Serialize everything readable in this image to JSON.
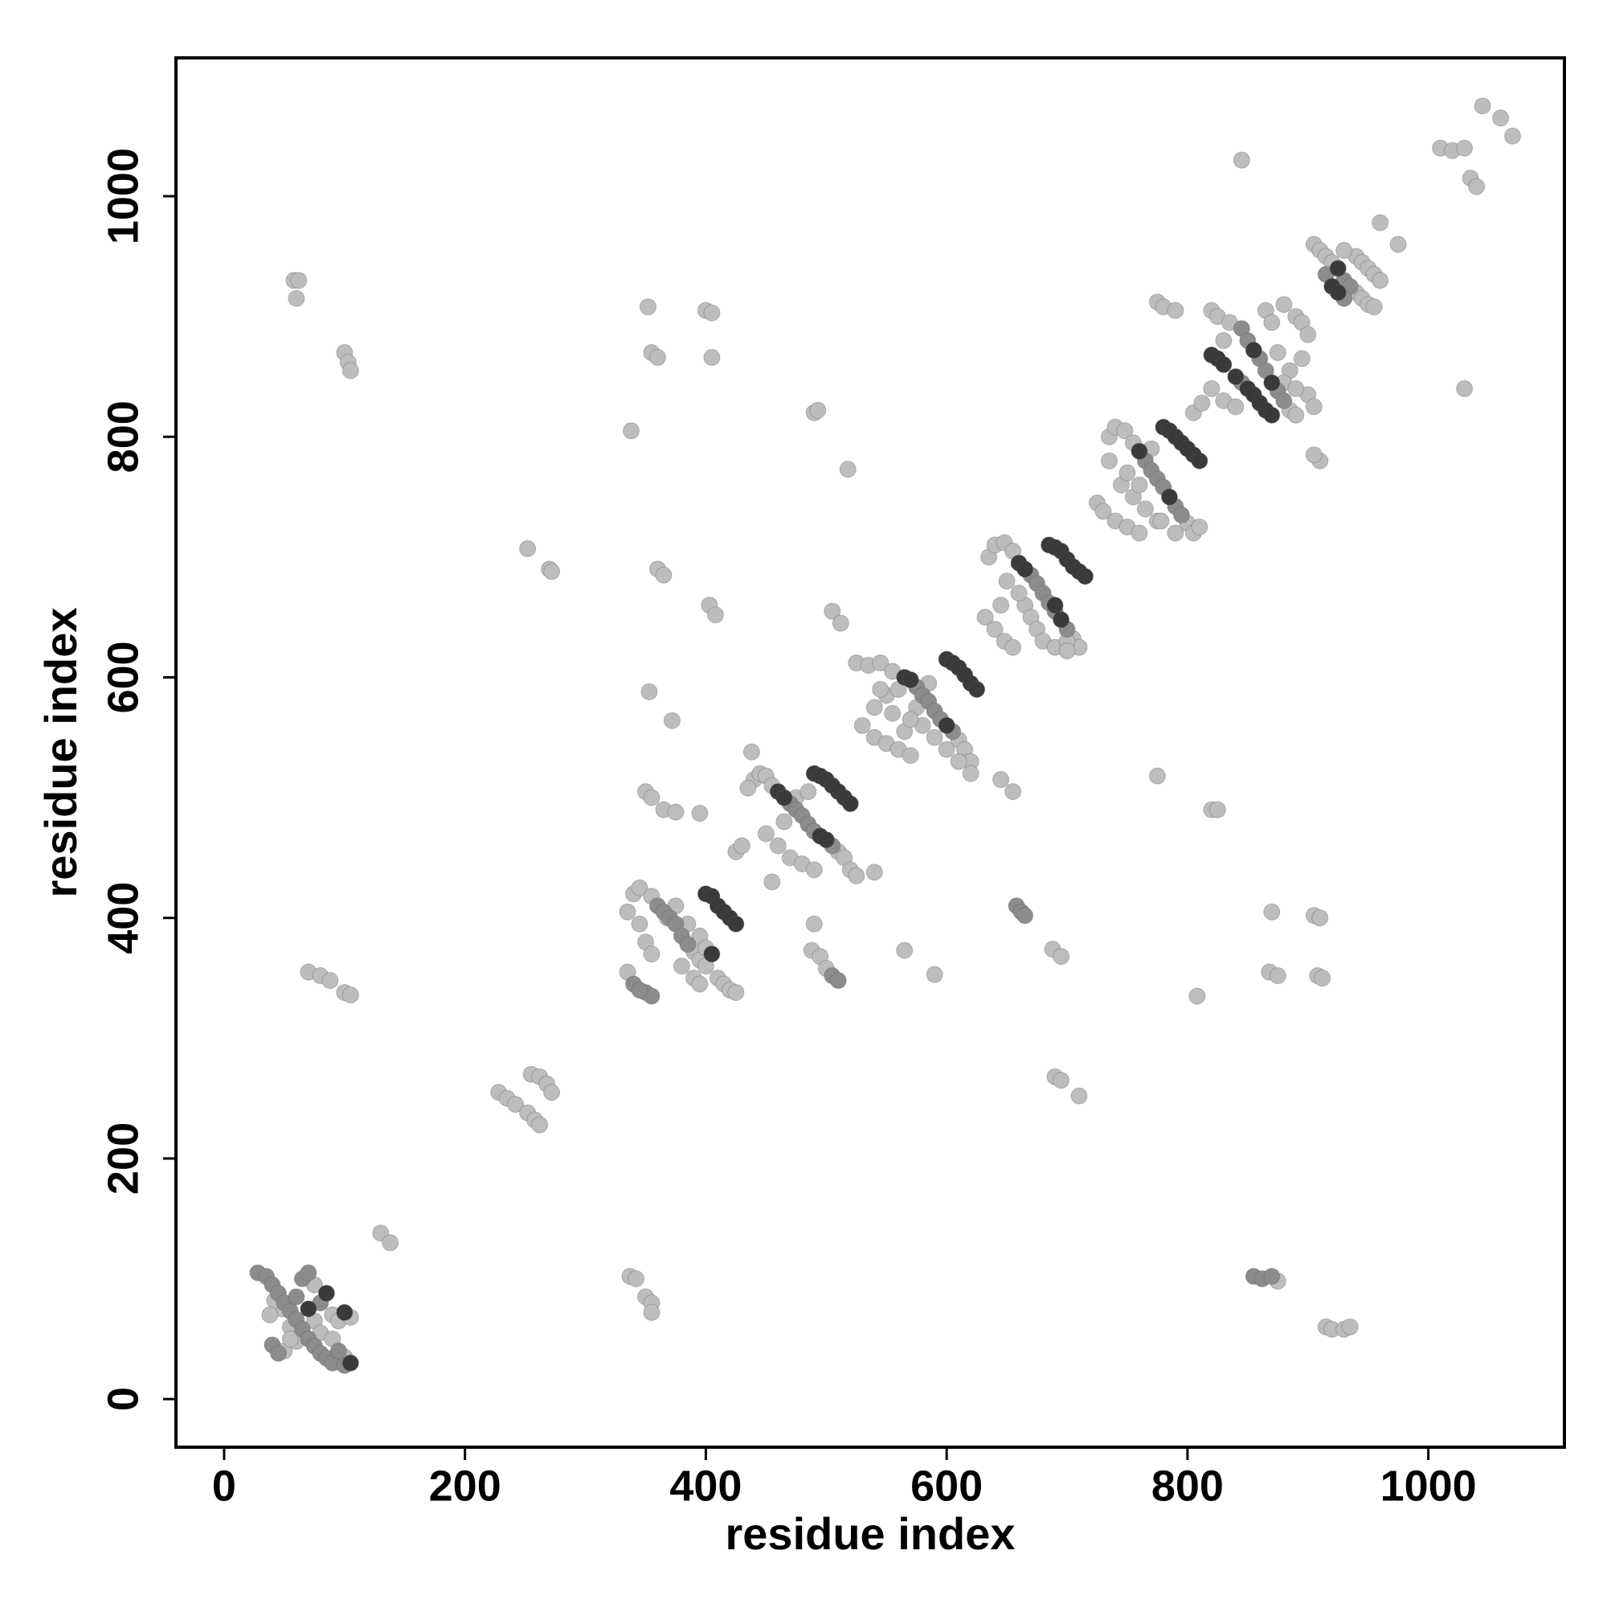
{
  "chart_data": {
    "type": "scatter",
    "xlabel": "residue index",
    "ylabel": "residue index",
    "xlim": [
      -40,
      1113
    ],
    "ylim": [
      -40,
      1115
    ],
    "xticks": [
      0,
      200,
      400,
      600,
      800,
      1000
    ],
    "yticks": [
      0,
      200,
      400,
      600,
      800,
      1000
    ],
    "series": [
      {
        "color": "#bdbdbd",
        "x": [
          50,
          55,
          75,
          90,
          95,
          105,
          60,
          75,
          80,
          90,
          100,
          55,
          48,
          42,
          38,
          130,
          138,
          228,
          235,
          242,
          252,
          258,
          262,
          255,
          262,
          268,
          272,
          337,
          342,
          350,
          355,
          355,
          58,
          62,
          60,
          100,
          103,
          105,
          70,
          80,
          88,
          100,
          105,
          252,
          270,
          272,
          352,
          355,
          360,
          400,
          405,
          405,
          338,
          360,
          365,
          403,
          408,
          353,
          372,
          350,
          355,
          365,
          375,
          395,
          490,
          493,
          518,
          505,
          512,
          340,
          345,
          355,
          390,
          395,
          400,
          410,
          415,
          420,
          425,
          335,
          368,
          375,
          385,
          395,
          400,
          380,
          390,
          395,
          335,
          345,
          350,
          355,
          425,
          430,
          440,
          445,
          450,
          455,
          510,
          515,
          520,
          525,
          450,
          460,
          470,
          480,
          490,
          435,
          438,
          455,
          540,
          475,
          485,
          465,
          490,
          488,
          495,
          500,
          565,
          590,
          525,
          535,
          545,
          555,
          610,
          615,
          620,
          530,
          540,
          550,
          560,
          570,
          540,
          550,
          560,
          580,
          590,
          600,
          610,
          620,
          545,
          555,
          565,
          575,
          585,
          570,
          645,
          655,
          688,
          695,
          690,
          695,
          710,
          870,
          868,
          875,
          905,
          910,
          908,
          912,
          808,
          875,
          915,
          920,
          930,
          935,
          775,
          820,
          825,
          1030,
          845,
          635,
          640,
          648,
          655,
          705,
          710,
          632,
          640,
          648,
          655,
          665,
          670,
          675,
          680,
          690,
          700,
          660,
          650,
          645,
          700,
          735,
          740,
          748,
          755,
          800,
          805,
          810,
          725,
          730,
          740,
          750,
          760,
          745,
          755,
          765,
          775,
          790,
          735,
          750,
          760,
          770,
          778,
          775,
          780,
          790,
          1045,
          1060,
          1070,
          1010,
          1020,
          1030,
          1035,
          1040,
          960,
          975,
          910,
          905,
          820,
          825,
          835,
          885,
          890,
          805,
          812,
          820,
          830,
          840,
          830,
          865,
          870,
          880,
          890,
          895,
          900,
          895,
          900,
          905,
          885,
          875,
          880,
          890,
          905,
          910,
          915,
          920,
          940,
          945,
          950,
          955,
          940,
          945,
          950,
          955,
          930,
          960
        ],
        "values": [
          40,
          60,
          95,
          70,
          65,
          68,
          48,
          65,
          55,
          50,
          35,
          50,
          75,
          82,
          70,
          138,
          130,
          255,
          250,
          245,
          238,
          232,
          228,
          270,
          268,
          262,
          255,
          102,
          100,
          85,
          80,
          72,
          930,
          930,
          915,
          870,
          862,
          855,
          355,
          352,
          348,
          338,
          336,
          707,
          690,
          688,
          908,
          870,
          866,
          905,
          903,
          866,
          805,
          690,
          685,
          660,
          652,
          588,
          564,
          505,
          500,
          490,
          488,
          487,
          820,
          822,
          773,
          655,
          645,
          420,
          425,
          418,
          372,
          365,
          360,
          350,
          345,
          340,
          338,
          355,
          400,
          410,
          395,
          385,
          375,
          360,
          350,
          345,
          405,
          395,
          380,
          370,
          455,
          460,
          515,
          520,
          518,
          510,
          455,
          450,
          440,
          435,
          470,
          460,
          450,
          445,
          440,
          508,
          538,
          430,
          438,
          500,
          505,
          480,
          395,
          373,
          368,
          358,
          373,
          353,
          612,
          610,
          612,
          605,
          548,
          540,
          530,
          560,
          550,
          545,
          540,
          535,
          575,
          585,
          590,
          560,
          550,
          540,
          530,
          520,
          590,
          570,
          555,
          575,
          595,
          565,
          515,
          505,
          374,
          368,
          268,
          265,
          252,
          405,
          355,
          352,
          402,
          400,
          352,
          350,
          335,
          98,
          60,
          58,
          58,
          60,
          518,
          490,
          490,
          840,
          1030,
          700,
          710,
          712,
          705,
          632,
          625,
          650,
          640,
          630,
          625,
          660,
          650,
          640,
          630,
          625,
          630,
          670,
          680,
          660,
          622,
          800,
          808,
          805,
          795,
          728,
          720,
          725,
          745,
          738,
          730,
          725,
          720,
          760,
          750,
          740,
          730,
          720,
          780,
          770,
          760,
          790,
          730,
          912,
          908,
          905,
          1075,
          1065,
          1050,
          1040,
          1038,
          1040,
          1015,
          1008,
          978,
          960,
          780,
          785,
          905,
          900,
          895,
          822,
          818,
          820,
          828,
          840,
          830,
          825,
          880,
          905,
          895,
          910,
          900,
          895,
          885,
          865,
          835,
          825,
          855,
          870,
          845,
          840,
          960,
          955,
          950,
          945,
          920,
          915,
          910,
          908,
          950,
          945,
          940,
          935,
          955,
          930
        ]
      },
      {
        "color": "#8c8c8c",
        "x": [
          28,
          35,
          40,
          45,
          50,
          55,
          60,
          65,
          70,
          75,
          80,
          85,
          90,
          100,
          40,
          45,
          60,
          65,
          70,
          80,
          95,
          350,
          355,
          360,
          365,
          370,
          375,
          380,
          385,
          340,
          345,
          470,
          475,
          480,
          485,
          490,
          505,
          575,
          580,
          585,
          590,
          595,
          605,
          670,
          675,
          680,
          685,
          690,
          700,
          765,
          770,
          775,
          780,
          790,
          795,
          845,
          850,
          860,
          865,
          875,
          880,
          845,
          930,
          935,
          915,
          930,
          658,
          662,
          665,
          855,
          862,
          870,
          505,
          510
        ],
        "values": [
          105,
          102,
          95,
          88,
          80,
          73,
          66,
          58,
          50,
          44,
          38,
          34,
          30,
          28,
          45,
          38,
          85,
          100,
          105,
          80,
          40,
          338,
          335,
          410,
          405,
          400,
          395,
          385,
          378,
          345,
          340,
          495,
          490,
          485,
          478,
          472,
          460,
          592,
          585,
          580,
          572,
          565,
          555,
          685,
          678,
          670,
          662,
          655,
          640,
          780,
          772,
          765,
          758,
          742,
          735,
          890,
          880,
          865,
          855,
          838,
          830,
          845,
          930,
          925,
          935,
          915,
          410,
          405,
          402,
          102,
          100,
          102,
          352,
          348
        ]
      },
      {
        "color": "#3a3a3a",
        "x": [
          85,
          105,
          70,
          100,
          400,
          405,
          410,
          415,
          420,
          425,
          405,
          460,
          465,
          495,
          500,
          490,
          495,
          500,
          505,
          510,
          515,
          520,
          565,
          570,
          600,
          600,
          605,
          610,
          615,
          620,
          625,
          660,
          665,
          695,
          685,
          690,
          695,
          700,
          705,
          710,
          715,
          690,
          760,
          785,
          780,
          785,
          790,
          795,
          800,
          805,
          810,
          855,
          870,
          820,
          825,
          830,
          840,
          850,
          855,
          860,
          865,
          870,
          925,
          920,
          925
        ],
        "values": [
          88,
          30,
          75,
          72,
          420,
          418,
          410,
          405,
          400,
          395,
          370,
          505,
          500,
          468,
          465,
          520,
          518,
          515,
          510,
          505,
          500,
          495,
          600,
          598,
          560,
          615,
          612,
          608,
          602,
          595,
          590,
          695,
          690,
          648,
          710,
          708,
          705,
          698,
          692,
          688,
          684,
          660,
          788,
          750,
          808,
          805,
          800,
          795,
          790,
          785,
          780,
          872,
          845,
          868,
          865,
          860,
          850,
          840,
          835,
          828,
          822,
          818,
          940,
          925,
          920
        ]
      }
    ]
  }
}
